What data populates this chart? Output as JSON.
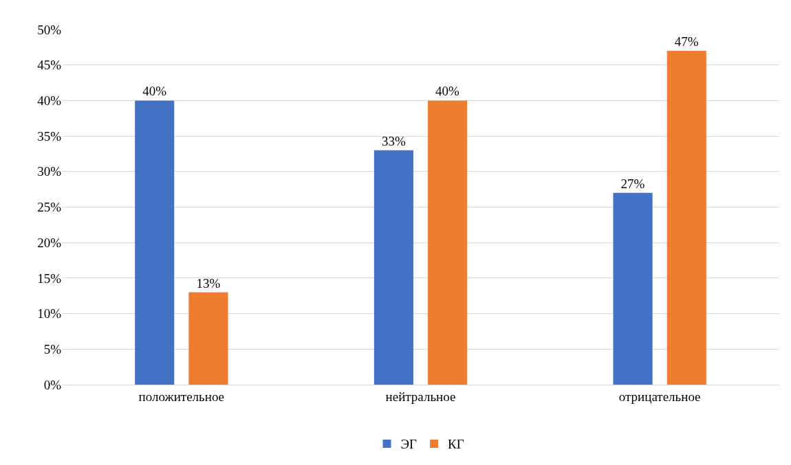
{
  "chart_data": {
    "type": "bar",
    "categories": [
      "положительное",
      "нейтральное",
      "отрицательное"
    ],
    "series": [
      {
        "name": "ЭГ",
        "color": "#4472c4",
        "values": [
          40,
          33,
          27
        ],
        "value_labels": [
          "40%",
          "33%",
          "27%"
        ]
      },
      {
        "name": "КГ",
        "color": "#ed7d31",
        "values": [
          13,
          40,
          47
        ],
        "value_labels": [
          "13%",
          "40%",
          "47%"
        ]
      }
    ],
    "ylim": [
      0,
      50
    ],
    "yticks": [
      {
        "value": 0,
        "label": "0%"
      },
      {
        "value": 5,
        "label": "5%"
      },
      {
        "value": 10,
        "label": "10%"
      },
      {
        "value": 15,
        "label": "15%"
      },
      {
        "value": 20,
        "label": "20%"
      },
      {
        "value": 25,
        "label": "25%"
      },
      {
        "value": 30,
        "label": "30%"
      },
      {
        "value": 35,
        "label": "35%"
      },
      {
        "value": 40,
        "label": "40%"
      },
      {
        "value": 45,
        "label": "45%"
      },
      {
        "value": 50,
        "label": "50%"
      }
    ],
    "grid": "y",
    "legend": "bottom"
  }
}
